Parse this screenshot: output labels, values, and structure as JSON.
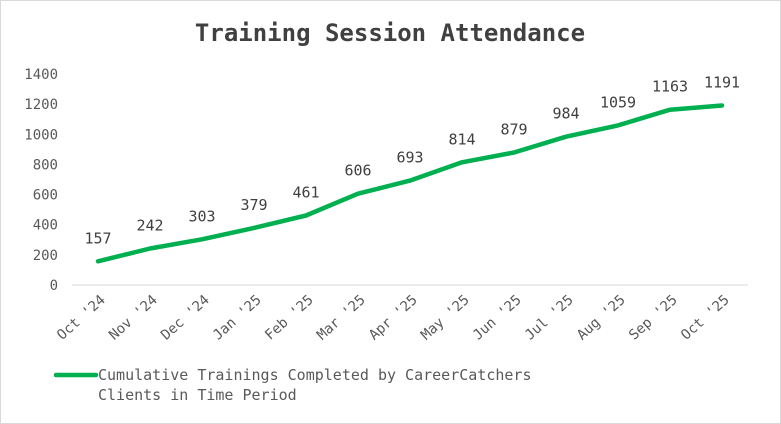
{
  "chart_data": {
    "type": "line",
    "title": "Training Session Attendance",
    "xlabel": "",
    "ylabel": "",
    "categories": [
      "Oct '24",
      "Nov '24",
      "Dec '24",
      "Jan '25",
      "Feb '25",
      "Mar '25",
      "Apr '25",
      "May '25",
      "Jun '25",
      "Jul '25",
      "Aug '25",
      "Sep '25",
      "Oct '25"
    ],
    "series": [
      {
        "name": "Cumulative Trainings Completed by CareerCatchers Clients in Time Period",
        "values": [
          157,
          242,
          303,
          379,
          461,
          606,
          693,
          814,
          879,
          984,
          1059,
          1163,
          1191
        ],
        "color": "#00b050"
      }
    ],
    "ylim": [
      0,
      1400
    ],
    "yticks": [
      0,
      200,
      400,
      600,
      800,
      1000,
      1200,
      1400
    ],
    "grid": false,
    "data_labels": true,
    "legend_position": "bottom"
  }
}
